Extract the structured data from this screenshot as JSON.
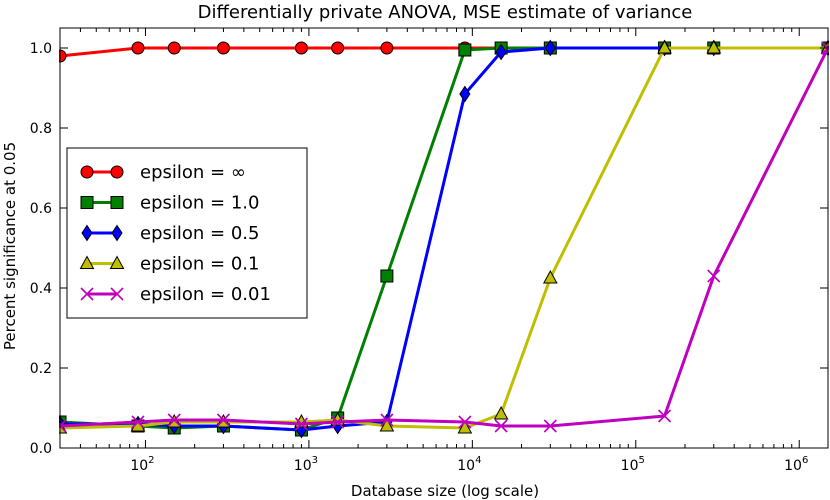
{
  "chart_data": {
    "type": "line",
    "title": "Differentially private ANOVA, MSE estimate of variance",
    "xlabel": "Database size (log scale)",
    "ylabel": "Percent significance at 0.05",
    "xscale": "log",
    "xlim": [
      30,
      1500000
    ],
    "ylim": [
      0.0,
      1.05
    ],
    "yticks": [
      0.0,
      0.2,
      0.4,
      0.6,
      0.8,
      1.0
    ],
    "ytick_labels": [
      "0.0",
      "0.2",
      "0.4",
      "0.6",
      "0.8",
      "1.0"
    ],
    "xticks": [
      {
        "value": 100,
        "base": "10",
        "exp": "2"
      },
      {
        "value": 1000,
        "base": "10",
        "exp": "3"
      },
      {
        "value": 10000,
        "base": "10",
        "exp": "4"
      },
      {
        "value": 100000,
        "base": "10",
        "exp": "5"
      },
      {
        "value": 1000000,
        "base": "10",
        "exp": "6"
      }
    ],
    "grid": false,
    "legend_position": "center-left",
    "x": [
      30,
      90,
      150,
      300,
      900,
      1500,
      3000,
      9000,
      15000,
      30000,
      150000,
      300000,
      1500000
    ],
    "series": [
      {
        "name": "epsilon = ∞",
        "color": "#ff0000",
        "marker": "circle",
        "values": [
          0.98,
          1.0,
          1.0,
          1.0,
          1.0,
          1.0,
          1.0,
          1.0,
          1.0,
          1.0,
          1.0,
          1.0,
          1.0
        ]
      },
      {
        "name": "epsilon = 1.0",
        "color": "#007f00",
        "marker": "square",
        "values": [
          0.065,
          0.055,
          0.05,
          0.055,
          0.045,
          0.075,
          0.43,
          0.995,
          1.0,
          1.0,
          1.0,
          1.0,
          1.0
        ]
      },
      {
        "name": "epsilon = 0.5",
        "color": "#0000ff",
        "marker": "diamond",
        "values": [
          0.06,
          0.06,
          0.055,
          0.055,
          0.045,
          0.055,
          0.065,
          0.885,
          0.99,
          1.0,
          1.0,
          1.0,
          1.0
        ]
      },
      {
        "name": "epsilon = 0.1",
        "color": "#bfbf00",
        "marker": "triangle",
        "values": [
          0.05,
          0.055,
          0.065,
          0.065,
          0.065,
          0.07,
          0.055,
          0.05,
          0.085,
          0.425,
          1.0,
          1.0,
          1.0
        ]
      },
      {
        "name": "epsilon = 0.01",
        "color": "#bf00bf",
        "marker": "x",
        "values": [
          0.055,
          0.065,
          0.07,
          0.07,
          0.06,
          0.065,
          0.07,
          0.065,
          0.055,
          0.055,
          0.08,
          0.43,
          1.0
        ]
      }
    ]
  }
}
